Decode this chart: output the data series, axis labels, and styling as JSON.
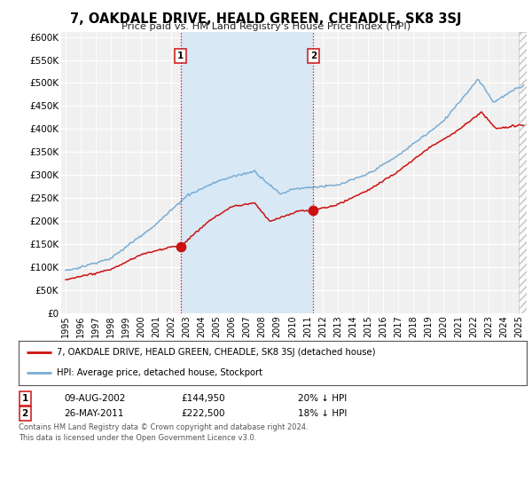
{
  "title": "7, OAKDALE DRIVE, HEALD GREEN, CHEADLE, SK8 3SJ",
  "subtitle": "Price paid vs. HM Land Registry's House Price Index (HPI)",
  "ylabel_ticks": [
    "£0",
    "£50K",
    "£100K",
    "£150K",
    "£200K",
    "£250K",
    "£300K",
    "£350K",
    "£400K",
    "£450K",
    "£500K",
    "£550K",
    "£600K"
  ],
  "ytick_values": [
    0,
    50000,
    100000,
    150000,
    200000,
    250000,
    300000,
    350000,
    400000,
    450000,
    500000,
    550000,
    600000
  ],
  "ylim": [
    0,
    610000
  ],
  "xlim_start": 1994.7,
  "xlim_end": 2025.5,
  "transaction1_x": 2002.6,
  "transaction1_y": 144950,
  "transaction1_label": "1",
  "transaction2_x": 2011.38,
  "transaction2_y": 222500,
  "transaction2_label": "2",
  "hpi_color": "#7aadd4",
  "property_color": "#cc1111",
  "vline_color": "#dd0000",
  "plot_bg_color": "#f0f0f0",
  "shade_color": "#d8e8f5",
  "legend_label_property": "7, OAKDALE DRIVE, HEALD GREEN, CHEADLE, SK8 3SJ (detached house)",
  "legend_label_hpi": "HPI: Average price, detached house, Stockport",
  "table_row1": [
    "1",
    "09-AUG-2002",
    "£144,950",
    "20% ↓ HPI"
  ],
  "table_row2": [
    "2",
    "26-MAY-2011",
    "£222,500",
    "18% ↓ HPI"
  ],
  "footer": "Contains HM Land Registry data © Crown copyright and database right 2024.\nThis data is licensed under the Open Government Licence v3.0.",
  "xtick_years": [
    1995,
    1996,
    1997,
    1998,
    1999,
    2000,
    2001,
    2002,
    2003,
    2004,
    2005,
    2006,
    2007,
    2008,
    2009,
    2010,
    2011,
    2012,
    2013,
    2014,
    2015,
    2016,
    2017,
    2018,
    2019,
    2020,
    2021,
    2022,
    2023,
    2024,
    2025
  ]
}
